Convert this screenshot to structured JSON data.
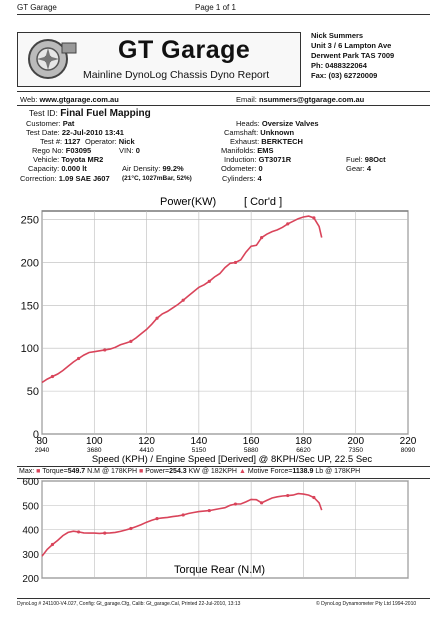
{
  "page_header": {
    "left": "GT Garage",
    "center": "Page 1 of 1"
  },
  "logo": {
    "title": "GT Garage",
    "subtitle": "Mainline DynoLog Chassis Dyno Report"
  },
  "contact": {
    "lines": [
      "Nick Summers",
      "Unit 3 / 6 Lampton Ave",
      "Derwent Park TAS 7009",
      "Ph: 0488322064",
      "Fax: (03) 62720009"
    ]
  },
  "web": {
    "label": "Web:",
    "value": "www.gtgarage.com.au"
  },
  "email": {
    "label": "Email:",
    "value": "nsummers@gtgarage.com.au"
  },
  "test": {
    "id_label": "Test ID:",
    "id_value": "Final Fuel Mapping",
    "customer_label": "Customer:",
    "customer_value": "Pat",
    "date_label": "Test Date:",
    "date_value": "22-Jul-2010 13:41",
    "testno_label": "Test #:",
    "testno_value": "1127",
    "operator_label": "Operator:",
    "operator_value": "Nick",
    "rego_label": "Rego No:",
    "rego_value": "F03095",
    "vin_label": "VIN:",
    "vin_value": "0",
    "vehicle_label": "Vehicle:",
    "vehicle_value": "Toyota MR2",
    "capacity_label": "Capacity:",
    "capacity_value": "0.000 lt",
    "airdensity_label": "Air Density:",
    "airdensity_value": "99.2%",
    "correction_label": "Correction:",
    "correction_value": "1.09 SAE J607",
    "conditions": "(21°C, 1027mBar, 52%)",
    "heads_label": "Heads:",
    "heads_value": "Oversize Valves",
    "camshaft_label": "Camshaft:",
    "camshaft_value": "Unknown",
    "exhaust_label": "Exhaust:",
    "exhaust_value": "BERKTECH",
    "manifolds_label": "Manifolds:",
    "manifolds_value": "EMS",
    "induction_label": "Induction:",
    "induction_value": "GT3071R",
    "odometer_label": "Odometer:",
    "odometer_value": "0",
    "cylinders_label": "Cylinders:",
    "cylinders_value": "4",
    "fuel_label": "Fuel:",
    "fuel_value": "98Oct",
    "gear_label": "Gear:",
    "gear_value": "4"
  },
  "max_bar": {
    "label": "Max:",
    "torque_label": "Torque=",
    "torque_value": "549.7",
    "torque_rest": "N.M @ 178KPH",
    "power_label": "Power=",
    "power_value": "254.3",
    "power_rest": "KW @ 182KPH",
    "motive_label": "Motive Force=",
    "motive_value": "1138.9",
    "motive_rest": "Lb @ 178KPH"
  },
  "footer": {
    "left": "DynoLog # 241100-V4.027, Config: Gt_garage.Cfg, Calib: Gt_garage.Cal, Printed 22-Jul-2010, 13:13",
    "right": "© DynoLog Dynamometer Pty Ltd 1994-2010"
  },
  "colors": {
    "curve": "#d9445a",
    "axis": "#333333",
    "grid": "#bbbbbb"
  },
  "chart_data": [
    {
      "type": "line",
      "title": "Power(KW)",
      "title_right": "[ Cor'd ]",
      "xlabel": "Speed (KPH) / Engine Speed [Derived] @ 8KPH/Sec UP, 22.5 Sec",
      "xlim": [
        80,
        220
      ],
      "ylim": [
        0,
        260
      ],
      "x_ticks": [
        80,
        100,
        120,
        140,
        160,
        180,
        200,
        220
      ],
      "x_ticks_rpm": [
        "2940",
        "3680",
        "4410",
        "5150",
        "5880",
        "6620",
        "7350",
        "8090"
      ],
      "y_ticks": [
        0,
        50,
        100,
        150,
        200,
        250
      ],
      "series": [
        {
          "x": [
            80,
            82,
            84,
            86,
            88,
            90,
            92,
            94,
            96,
            98,
            100,
            102,
            104,
            106,
            108,
            110,
            112,
            114,
            116,
            118,
            120,
            122,
            124,
            126,
            128,
            130,
            132,
            134,
            136,
            138,
            140,
            142,
            144,
            146,
            148,
            150,
            152,
            154,
            156,
            158,
            160,
            162,
            164,
            166,
            168,
            170,
            172,
            174,
            176,
            178,
            180,
            182,
            184,
            186,
            187
          ],
          "y": [
            60,
            64,
            67,
            70,
            74,
            79,
            84,
            88,
            92,
            95,
            96,
            97,
            98,
            99,
            101,
            104,
            106,
            108,
            112,
            117,
            122,
            128,
            135,
            140,
            143,
            147,
            151,
            156,
            161,
            166,
            171,
            174,
            178,
            183,
            187,
            194,
            199,
            200,
            203,
            212,
            219,
            220,
            229,
            233,
            236,
            238,
            241,
            245,
            248,
            251,
            253,
            254,
            252,
            242,
            229
          ]
        }
      ]
    },
    {
      "type": "line",
      "title": "Torque Rear (N.M)",
      "xlim": [
        80,
        220
      ],
      "ylim": [
        200,
        600
      ],
      "y_ticks": [
        200,
        300,
        400,
        500,
        600
      ],
      "series": [
        {
          "x": [
            80,
            82,
            84,
            86,
            88,
            90,
            92,
            94,
            96,
            98,
            100,
            102,
            104,
            106,
            108,
            110,
            112,
            114,
            116,
            118,
            120,
            122,
            124,
            126,
            128,
            130,
            132,
            134,
            136,
            138,
            140,
            142,
            144,
            146,
            148,
            150,
            152,
            154,
            156,
            158,
            160,
            162,
            164,
            166,
            168,
            170,
            172,
            174,
            176,
            178,
            180,
            182,
            184,
            186,
            187
          ],
          "y": [
            290,
            318,
            338,
            355,
            375,
            388,
            393,
            390,
            386,
            385,
            385,
            384,
            385,
            386,
            388,
            392,
            398,
            404,
            412,
            420,
            430,
            438,
            445,
            448,
            450,
            453,
            456,
            460,
            466,
            470,
            474,
            476,
            478,
            482,
            486,
            490,
            500,
            505,
            505,
            514,
            524,
            523,
            510,
            520,
            530,
            535,
            538,
            540,
            542,
            548,
            546,
            542,
            532,
            510,
            480
          ]
        }
      ]
    }
  ]
}
